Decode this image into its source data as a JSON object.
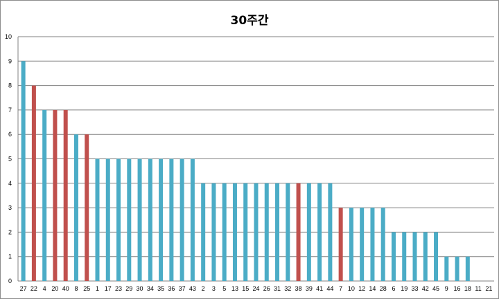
{
  "chart_data": {
    "type": "bar",
    "title": "30주간",
    "xlabel": "",
    "ylabel": "",
    "ylim": [
      0,
      10
    ],
    "yticks": [
      0,
      1,
      2,
      3,
      4,
      5,
      6,
      7,
      8,
      9,
      10
    ],
    "grid": true,
    "legend": "none",
    "categories": [
      "27",
      "22",
      "4",
      "20",
      "40",
      "8",
      "25",
      "1",
      "17",
      "23",
      "29",
      "30",
      "34",
      "35",
      "36",
      "37",
      "43",
      "2",
      "3",
      "5",
      "13",
      "15",
      "24",
      "26",
      "31",
      "32",
      "38",
      "39",
      "41",
      "44",
      "7",
      "10",
      "12",
      "14",
      "28",
      "6",
      "19",
      "33",
      "42",
      "45",
      "9",
      "16",
      "18",
      "11",
      "21"
    ],
    "values": [
      9,
      8,
      7,
      7,
      7,
      6,
      6,
      5,
      5,
      5,
      5,
      5,
      5,
      5,
      5,
      5,
      5,
      4,
      4,
      4,
      4,
      4,
      4,
      4,
      4,
      4,
      4,
      4,
      4,
      4,
      3,
      3,
      3,
      3,
      3,
      2,
      2,
      2,
      2,
      2,
      1,
      1,
      1,
      0,
      0
    ],
    "highlighted": [
      "22",
      "20",
      "40",
      "25",
      "38",
      "7"
    ],
    "colors": {
      "default": "#4bacc6",
      "highlight": "#c0504d",
      "grid": "#808080"
    }
  }
}
